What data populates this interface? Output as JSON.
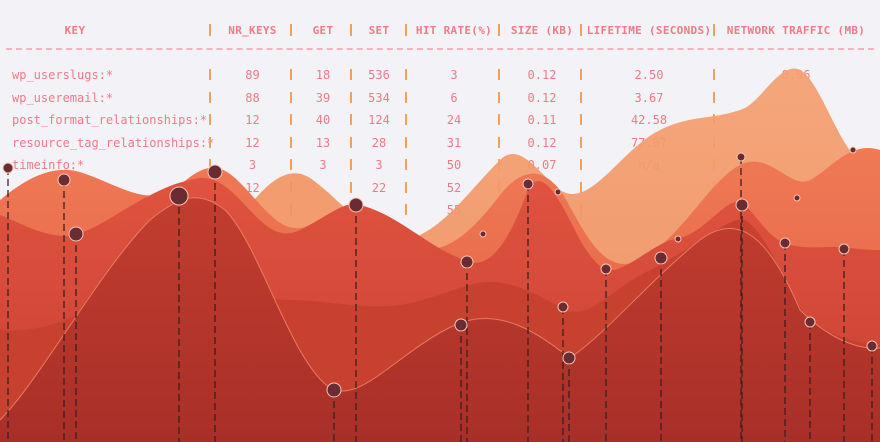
{
  "table": {
    "headers": [
      "KEY",
      "NR_KEYS",
      "GET",
      "SET",
      "HIT RATE(%)",
      "SIZE (KB)",
      "LIFETIME (SECONDS)",
      "NETWORK TRAFFIC (MB)"
    ],
    "rows": [
      [
        "wp_userslugs:*",
        "89",
        "18",
        "536",
        "3",
        "0.12",
        "2.50",
        "0.06"
      ],
      [
        "wp_useremail:*",
        "88",
        "39",
        "534",
        "6",
        "0.12",
        "3.67",
        ""
      ],
      [
        "post_format_relationships:*",
        "12",
        "40",
        "124",
        "24",
        "0.11",
        "42.58",
        ""
      ],
      [
        "resource_tag_relationships:*",
        "12",
        "13",
        "28",
        "31",
        "0.12",
        "77.67",
        ""
      ],
      [
        "timeinfo:*",
        "3",
        "3",
        "3",
        "50",
        "0.07",
        "n/a",
        ""
      ],
      [
        "",
        "12",
        "",
        "22",
        "52",
        "",
        "",
        ""
      ],
      [
        "",
        "",
        "",
        "",
        "55",
        "",
        "",
        ""
      ]
    ]
  },
  "colors": {
    "background": "#f3f2f7",
    "table_text": "#f07a86",
    "separator": "#f0a15a",
    "dash": "#f3b4bd",
    "wave_front": "#b8382d",
    "wave_mid": "#d64a38",
    "wave_back": "#ee6b4f",
    "wave_far": "#f09a6b",
    "marker_fill": "#6e2a34"
  }
}
